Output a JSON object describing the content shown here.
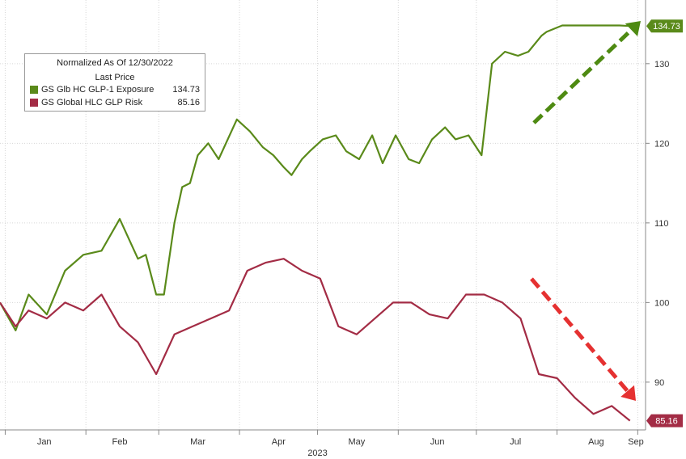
{
  "chart_data": {
    "type": "line",
    "title": "",
    "xlabel": "",
    "ylabel": "",
    "year_label": "2023",
    "legend": {
      "header_line1": "Normalized As Of 12/30/2022",
      "header_line2": "Last Price",
      "placement": "top-left"
    },
    "x_ticks": [
      "Jan",
      "Feb",
      "Mar",
      "Apr",
      "May",
      "Jun",
      "Jul",
      "Aug",
      "Sep"
    ],
    "ylim": [
      84,
      138
    ],
    "y_ticks": [
      90,
      100,
      110,
      120,
      130
    ],
    "grid": true,
    "series": [
      {
        "name": "GS Glb HC GLP-1 Exposure",
        "last_value": "134.73",
        "color": "#5a8a1a",
        "x": [
          "2022-12-30",
          "2023-01-05",
          "2023-01-10",
          "2023-01-17",
          "2023-01-24",
          "2023-01-31",
          "2023-02-07",
          "2023-02-14",
          "2023-02-21",
          "2023-02-24",
          "2023-02-28",
          "2023-03-03",
          "2023-03-07",
          "2023-03-10",
          "2023-03-13",
          "2023-03-16",
          "2023-03-20",
          "2023-03-24",
          "2023-03-31",
          "2023-04-05",
          "2023-04-10",
          "2023-04-14",
          "2023-04-18",
          "2023-04-21",
          "2023-04-25",
          "2023-04-28",
          "2023-05-03",
          "2023-05-08",
          "2023-05-12",
          "2023-05-17",
          "2023-05-22",
          "2023-05-26",
          "2023-05-31",
          "2023-06-05",
          "2023-06-09",
          "2023-06-14",
          "2023-06-19",
          "2023-06-23",
          "2023-06-28",
          "2023-07-03",
          "2023-07-07",
          "2023-07-12",
          "2023-07-17",
          "2023-07-21",
          "2023-07-26",
          "2023-07-28",
          "2023-08-03",
          "2023-08-09",
          "2023-08-15",
          "2023-08-21",
          "2023-08-25",
          "2023-08-29"
        ],
        "y": [
          100,
          96.5,
          101,
          98.5,
          104,
          106,
          106.5,
          110.5,
          105.5,
          106,
          101,
          101,
          110,
          114.5,
          115,
          118.5,
          120,
          118,
          123,
          121.5,
          119.5,
          118.5,
          117,
          116,
          118,
          119,
          120.5,
          121,
          119,
          118,
          121,
          117.5,
          121,
          118,
          117.5,
          120.5,
          122,
          120.5,
          121,
          118.5,
          130,
          131.5,
          131,
          131.5,
          133.5,
          134,
          134.8,
          134.8,
          134.8,
          134.8,
          134.8,
          134.73
        ]
      },
      {
        "name": "GS Global HLC GLP Risk",
        "last_value": "85.16",
        "color": "#a32c45",
        "x": [
          "2022-12-30",
          "2023-01-05",
          "2023-01-10",
          "2023-01-17",
          "2023-01-24",
          "2023-01-31",
          "2023-02-07",
          "2023-02-14",
          "2023-02-21",
          "2023-02-28",
          "2023-03-07",
          "2023-03-14",
          "2023-03-21",
          "2023-03-28",
          "2023-04-04",
          "2023-04-11",
          "2023-04-18",
          "2023-04-25",
          "2023-05-02",
          "2023-05-09",
          "2023-05-16",
          "2023-05-23",
          "2023-05-30",
          "2023-06-06",
          "2023-06-13",
          "2023-06-20",
          "2023-06-27",
          "2023-07-04",
          "2023-07-11",
          "2023-07-18",
          "2023-07-25",
          "2023-08-01",
          "2023-08-08",
          "2023-08-15",
          "2023-08-22",
          "2023-08-29"
        ],
        "y": [
          100,
          97,
          99,
          98,
          100,
          99,
          101,
          97,
          95,
          91,
          96,
          97,
          98,
          99,
          104,
          105,
          105.5,
          104,
          103,
          97,
          96,
          98,
          100,
          100,
          98.5,
          98,
          101,
          101,
          100,
          98,
          91,
          90.5,
          88,
          86,
          87,
          85.16
        ]
      }
    ]
  },
  "colors": {
    "grid": "#d6d6d6",
    "axis_text": "#333333",
    "green_arrow": "#4e8a12",
    "red_arrow": "#e53131"
  }
}
